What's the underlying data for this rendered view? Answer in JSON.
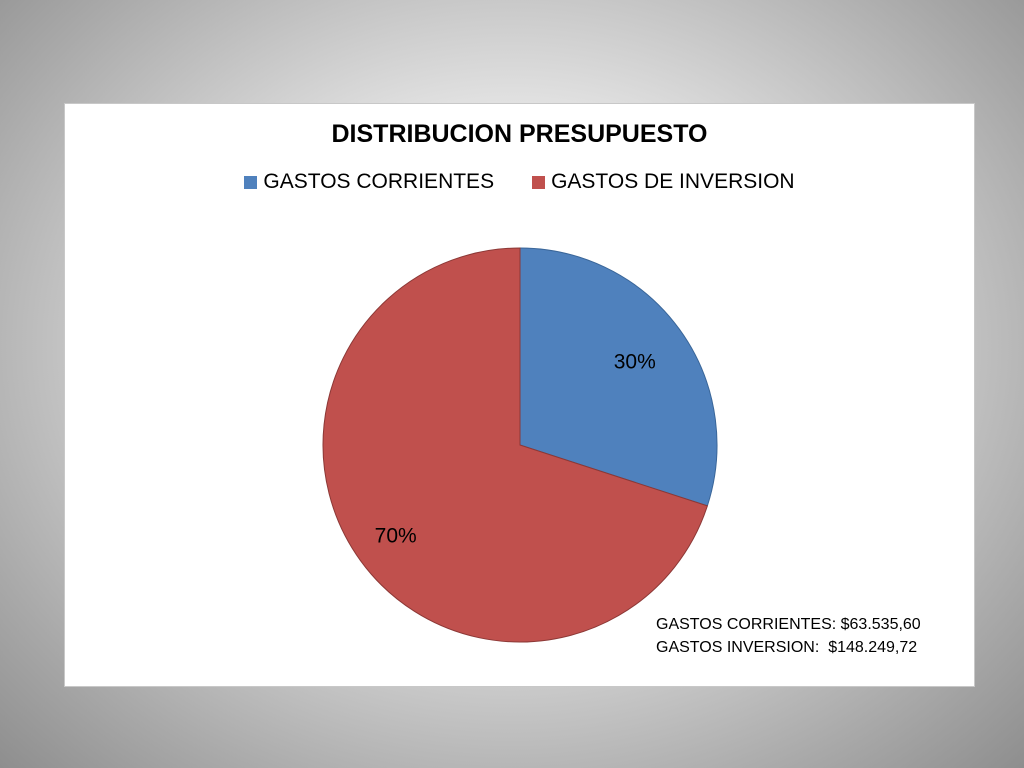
{
  "chart_data": {
    "type": "pie",
    "title": "DISTRIBUCION PRESUPUESTO",
    "categories": [
      "GASTOS CORRIENTES",
      "GASTOS DE INVERSION"
    ],
    "values": [
      63535.6,
      148249.72
    ],
    "data_labels": [
      "30%",
      "70%"
    ],
    "colors": [
      "#4f81bd",
      "#c0504d"
    ],
    "legend_position": "top"
  },
  "notes": [
    "GASTOS CORRIENTES: $63.535,60",
    "GASTOS INVERSION:  $148.249,72"
  ]
}
